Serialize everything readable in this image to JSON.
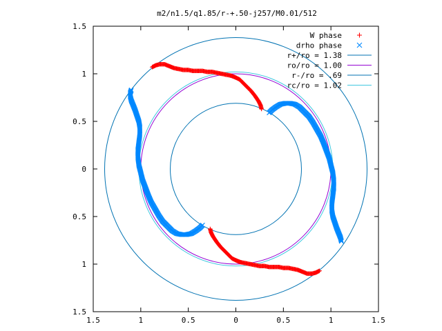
{
  "chart_data": {
    "type": "scatter",
    "title": "m2/n1.5/q1.85/r-+.50-j257/M0.01/512",
    "xlim": [
      -1.5,
      1.5
    ],
    "ylim": [
      -1.5,
      1.5
    ],
    "xticks": [
      -1.5,
      -1,
      -0.5,
      0,
      0.5,
      1,
      1.5
    ],
    "yticks": [
      -1.5,
      -1,
      -0.5,
      0,
      0.5,
      1,
      1.5
    ],
    "xtick_labels": [
      "1.5",
      "1",
      "0.5",
      "0",
      "0.5",
      "1",
      "1.5"
    ],
    "ytick_labels": [
      "1.5",
      "1",
      "0.5",
      "0",
      "0.5",
      "1",
      "1.5"
    ],
    "grid": false,
    "legend_position": "top-right",
    "series": [
      {
        "name": "W phase",
        "marker": "+",
        "color": "#ff0000",
        "points": [
          [
            -0.88,
            1.07
          ],
          [
            -0.84,
            1.09
          ],
          [
            -0.8,
            1.1
          ],
          [
            -0.75,
            1.1
          ],
          [
            -0.7,
            1.08
          ],
          [
            -0.65,
            1.06
          ],
          [
            -0.6,
            1.05
          ],
          [
            -0.55,
            1.04
          ],
          [
            -0.5,
            1.04
          ],
          [
            -0.45,
            1.03
          ],
          [
            -0.4,
            1.03
          ],
          [
            -0.35,
            1.03
          ],
          [
            -0.3,
            1.02
          ],
          [
            -0.25,
            1.02
          ],
          [
            -0.2,
            1.01
          ],
          [
            -0.15,
            1.0
          ],
          [
            -0.1,
            0.99
          ],
          [
            -0.05,
            0.98
          ],
          [
            0.0,
            0.96
          ],
          [
            0.04,
            0.94
          ],
          [
            0.08,
            0.9
          ],
          [
            0.12,
            0.86
          ],
          [
            0.16,
            0.82
          ],
          [
            0.2,
            0.77
          ],
          [
            0.24,
            0.71
          ],
          [
            0.26,
            0.67
          ],
          [
            0.27,
            0.63
          ],
          [
            0.88,
            -1.07
          ],
          [
            0.84,
            -1.09
          ],
          [
            0.8,
            -1.1
          ],
          [
            0.75,
            -1.1
          ],
          [
            0.7,
            -1.08
          ],
          [
            0.65,
            -1.06
          ],
          [
            0.6,
            -1.05
          ],
          [
            0.55,
            -1.04
          ],
          [
            0.5,
            -1.04
          ],
          [
            0.45,
            -1.03
          ],
          [
            0.4,
            -1.03
          ],
          [
            0.35,
            -1.03
          ],
          [
            0.3,
            -1.02
          ],
          [
            0.25,
            -1.02
          ],
          [
            0.2,
            -1.01
          ],
          [
            0.15,
            -1.0
          ],
          [
            0.1,
            -0.99
          ],
          [
            0.05,
            -0.98
          ],
          [
            0.0,
            -0.96
          ],
          [
            -0.04,
            -0.94
          ],
          [
            -0.08,
            -0.9
          ],
          [
            -0.12,
            -0.86
          ],
          [
            -0.16,
            -0.82
          ],
          [
            -0.2,
            -0.77
          ],
          [
            -0.24,
            -0.71
          ],
          [
            -0.26,
            -0.67
          ],
          [
            -0.27,
            -0.63
          ]
        ]
      },
      {
        "name": "drho phase",
        "marker": "x",
        "color": "#0088ff",
        "points": [
          [
            0.35,
            0.59
          ],
          [
            0.38,
            0.62
          ],
          [
            0.42,
            0.65
          ],
          [
            0.47,
            0.68
          ],
          [
            0.52,
            0.69
          ],
          [
            0.57,
            0.69
          ],
          [
            0.62,
            0.68
          ],
          [
            0.67,
            0.65
          ],
          [
            0.72,
            0.6
          ],
          [
            0.77,
            0.55
          ],
          [
            0.81,
            0.49
          ],
          [
            0.85,
            0.42
          ],
          [
            0.89,
            0.35
          ],
          [
            0.92,
            0.28
          ],
          [
            0.95,
            0.2
          ],
          [
            0.98,
            0.12
          ],
          [
            1.0,
            0.04
          ],
          [
            1.02,
            -0.04
          ],
          [
            1.03,
            -0.12
          ],
          [
            1.03,
            -0.2
          ],
          [
            1.02,
            -0.28
          ],
          [
            1.01,
            -0.36
          ],
          [
            1.01,
            -0.44
          ],
          [
            1.02,
            -0.5
          ],
          [
            1.04,
            -0.56
          ],
          [
            1.06,
            -0.62
          ],
          [
            1.08,
            -0.67
          ],
          [
            1.1,
            -0.72
          ],
          [
            1.11,
            -0.76
          ],
          [
            -0.35,
            -0.59
          ],
          [
            -0.38,
            -0.62
          ],
          [
            -0.42,
            -0.65
          ],
          [
            -0.47,
            -0.68
          ],
          [
            -0.52,
            -0.69
          ],
          [
            -0.57,
            -0.69
          ],
          [
            -0.62,
            -0.68
          ],
          [
            -0.67,
            -0.65
          ],
          [
            -0.72,
            -0.6
          ],
          [
            -0.77,
            -0.55
          ],
          [
            -0.81,
            -0.49
          ],
          [
            -0.85,
            -0.42
          ],
          [
            -0.89,
            -0.35
          ],
          [
            -0.92,
            -0.28
          ],
          [
            -0.95,
            -0.2
          ],
          [
            -0.98,
            -0.12
          ],
          [
            -1.0,
            -0.04
          ],
          [
            -1.02,
            0.04
          ],
          [
            -1.03,
            0.12
          ],
          [
            -1.03,
            0.2
          ],
          [
            -1.02,
            0.28
          ],
          [
            -1.01,
            0.36
          ],
          [
            -1.01,
            0.44
          ],
          [
            -1.02,
            0.5
          ],
          [
            -1.04,
            0.56
          ],
          [
            -1.06,
            0.62
          ],
          [
            -1.08,
            0.67
          ],
          [
            -1.1,
            0.72
          ],
          [
            -1.11,
            0.76
          ],
          [
            -1.11,
            0.8
          ],
          [
            -1.1,
            0.83
          ]
        ]
      }
    ],
    "circles": [
      {
        "name": "r+/ro = 1.38",
        "radius": 1.38,
        "color": "#0072b2"
      },
      {
        "name": "ro/ro = 1.00",
        "radius": 1.0,
        "color": "#9400d3"
      },
      {
        "name": "r-/ro = .69",
        "radius": 0.69,
        "color": "#0072b2"
      },
      {
        "name": "rc/ro = 1.02",
        "radius": 1.02,
        "color": "#40c8e0"
      }
    ]
  }
}
